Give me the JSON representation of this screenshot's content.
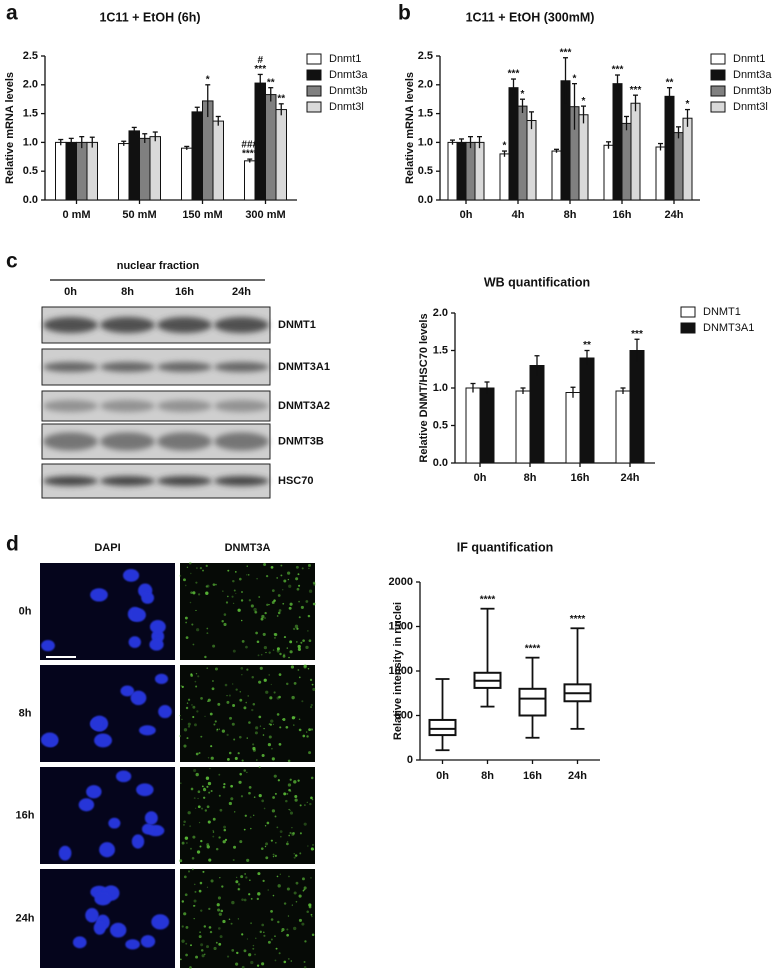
{
  "panel_labels": [
    "a",
    "b",
    "c",
    "d"
  ],
  "chart_data": [
    {
      "type": "bar",
      "title": "1C11 + EtOH (6h)",
      "y_label": "Relative mRNA levels",
      "categories": [
        "0 mM",
        "50 mM",
        "150 mM",
        "300 mM"
      ],
      "series": [
        {
          "name": "Dnmt1",
          "color": "#ffffff",
          "values": [
            1.0,
            0.98,
            0.9,
            0.68
          ],
          "errors": [
            0.05,
            0.04,
            0.03,
            0.03
          ],
          "annotations": [
            null,
            null,
            null,
            [
              "###",
              "****"
            ]
          ]
        },
        {
          "name": "Dnmt3a",
          "color": "#111111",
          "values": [
            1.0,
            1.2,
            1.53,
            2.03
          ],
          "errors": [
            0.07,
            0.06,
            0.08,
            0.15
          ],
          "annotations": [
            null,
            null,
            null,
            [
              "#",
              "***"
            ]
          ]
        },
        {
          "name": "Dnmt3b",
          "color": "#808080",
          "values": [
            1.0,
            1.07,
            1.72,
            1.83
          ],
          "errors": [
            0.1,
            0.08,
            0.28,
            0.12
          ],
          "annotations": [
            null,
            null,
            [
              "*"
            ],
            [
              "**"
            ]
          ]
        },
        {
          "name": "Dnmt3l",
          "color": "#d9d9d9",
          "values": [
            1.0,
            1.1,
            1.37,
            1.57
          ],
          "errors": [
            0.09,
            0.08,
            0.08,
            0.1
          ],
          "annotations": [
            null,
            null,
            null,
            [
              "**"
            ]
          ]
        }
      ],
      "ylim": [
        0,
        2.5
      ],
      "yticks": [
        {
          "value": 0,
          "label": "0.0"
        },
        0.5,
        {
          "value": 1,
          "label": "1.0"
        },
        1.5,
        {
          "value": 2,
          "label": "2.0"
        },
        2.5
      ],
      "legend": "right"
    },
    {
      "type": "bar",
      "title": "1C11 + EtOH (300mM)",
      "y_label": "Relative mRNA levels",
      "categories": [
        "0h",
        "4h",
        "8h",
        "16h",
        "24h"
      ],
      "series": [
        {
          "name": "Dnmt1",
          "color": "#ffffff",
          "values": [
            1.0,
            0.8,
            0.85,
            0.95,
            0.92
          ],
          "errors": [
            0.04,
            0.05,
            0.03,
            0.06,
            0.06
          ],
          "annotations": [
            null,
            [
              "*"
            ],
            null,
            null,
            null
          ]
        },
        {
          "name": "Dnmt3a",
          "color": "#111111",
          "values": [
            1.0,
            1.95,
            2.07,
            2.02,
            1.8
          ],
          "errors": [
            0.06,
            0.15,
            0.4,
            0.15,
            0.15
          ],
          "annotations": [
            null,
            [
              "***"
            ],
            [
              "***"
            ],
            [
              "***"
            ],
            [
              "**"
            ]
          ]
        },
        {
          "name": "Dnmt3b",
          "color": "#808080",
          "values": [
            1.0,
            1.63,
            1.62,
            1.33,
            1.17
          ],
          "errors": [
            0.1,
            0.12,
            0.4,
            0.12,
            0.1
          ],
          "annotations": [
            null,
            [
              "*"
            ],
            [
              "*"
            ],
            null,
            null
          ]
        },
        {
          "name": "Dnmt3l",
          "color": "#d9d9d9",
          "values": [
            1.0,
            1.38,
            1.48,
            1.68,
            1.42
          ],
          "errors": [
            0.1,
            0.15,
            0.15,
            0.14,
            0.15
          ],
          "annotations": [
            null,
            null,
            [
              "*"
            ],
            [
              "***"
            ],
            [
              "*"
            ]
          ]
        }
      ],
      "ylim": [
        0,
        2.5
      ],
      "yticks": [
        {
          "value": 0,
          "label": "0.0"
        },
        0.5,
        {
          "value": 1,
          "label": "1.0"
        },
        1.5,
        {
          "value": 2,
          "label": "2.0"
        },
        2.5
      ],
      "legend": "right"
    },
    {
      "type": "bar",
      "title": "WB quantification",
      "y_label": "Relative  DNMT/HSC70  levels",
      "categories": [
        "0h",
        "8h",
        "16h",
        "24h"
      ],
      "series": [
        {
          "name": "DNMT1",
          "color": "#ffffff",
          "values": [
            1.0,
            0.96,
            0.94,
            0.96
          ],
          "errors": [
            0.06,
            0.04,
            0.07,
            0.04
          ],
          "annotations": [
            null,
            null,
            null,
            null
          ]
        },
        {
          "name": "DNMT3A1",
          "color": "#111111",
          "values": [
            1.0,
            1.3,
            1.4,
            1.5
          ],
          "errors": [
            0.08,
            0.13,
            0.1,
            0.15
          ],
          "annotations": [
            null,
            null,
            [
              "**"
            ],
            [
              "***"
            ]
          ]
        }
      ],
      "ylim": [
        0,
        2
      ],
      "yticks": [
        {
          "value": 0,
          "label": "0.0"
        },
        0.5,
        {
          "value": 1,
          "label": "1.0"
        },
        1.5,
        {
          "value": 2,
          "label": "2.0"
        }
      ],
      "legend": "right"
    },
    {
      "type": "box",
      "title": "IF quantification",
      "y_label": "Relative intensity in nuclei",
      "categories": [
        "0h",
        "8h",
        "16h",
        "24h"
      ],
      "boxes": [
        {
          "min": 110,
          "q1": 280,
          "median": 350,
          "q3": 450,
          "max": 910
        },
        {
          "min": 600,
          "q1": 810,
          "median": 890,
          "q3": 980,
          "max": 1700
        },
        {
          "min": 250,
          "q1": 500,
          "median": 690,
          "q3": 800,
          "max": 1150
        },
        {
          "min": 350,
          "q1": 660,
          "median": 750,
          "q3": 850,
          "max": 1480
        }
      ],
      "annotations": [
        null,
        "****",
        "****",
        "****"
      ],
      "ylim": [
        0,
        2000
      ],
      "yticks": [
        0,
        500,
        1000,
        1500,
        2000
      ]
    }
  ],
  "western_blot": {
    "title": "nuclear fraction",
    "lanes": [
      "0h",
      "8h",
      "16h",
      "24h"
    ],
    "bands": [
      "DNMT1",
      "DNMT3A1",
      "DNMT3A2",
      "DNMT3B",
      "HSC70"
    ]
  },
  "immunofluorescence": {
    "columns": [
      "DAPI",
      "DNMT3A"
    ],
    "rows": [
      "0h",
      "8h",
      "16h",
      "24h"
    ]
  }
}
